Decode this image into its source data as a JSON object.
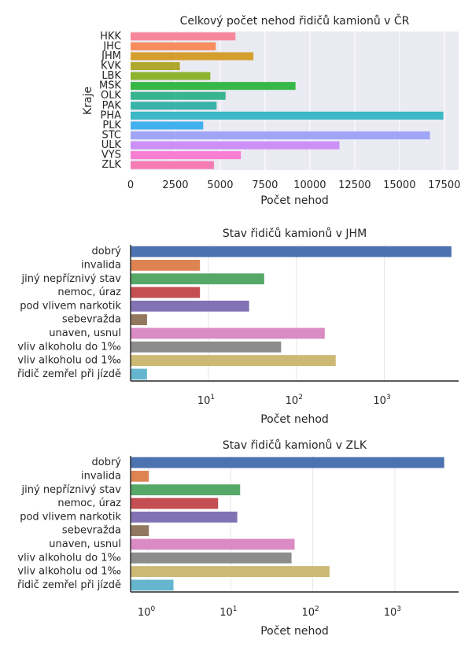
{
  "chart_data": [
    {
      "type": "bar",
      "orientation": "horizontal",
      "title": "Celkový počet nehod řidičů kamionů v ČR",
      "xlabel": "Počet nehod",
      "ylabel": "Kraje",
      "xscale": "linear",
      "xlim": [
        0,
        18300
      ],
      "xticks": [
        0,
        2500,
        5000,
        7500,
        10000,
        12500,
        15000,
        17500
      ],
      "xtick_labels": [
        "0",
        "2500",
        "5000",
        "7500",
        "10000",
        "12500",
        "15000",
        "17500"
      ],
      "grid": true,
      "background": "#eaeaf2",
      "categories": [
        "HKK",
        "JHC",
        "JHM",
        "KVK",
        "LBK",
        "MSK",
        "OLK",
        "PAK",
        "PHA",
        "PLK",
        "STC",
        "ULK",
        "VYS",
        "ZLK"
      ],
      "values": [
        5850,
        4750,
        6850,
        2750,
        4450,
        9200,
        5300,
        4800,
        17450,
        4050,
        16700,
        11650,
        6150,
        4650
      ],
      "colors": [
        "#f7879a",
        "#f88c5e",
        "#d59f2f",
        "#b0a72f",
        "#8db32f",
        "#36b848",
        "#38b58e",
        "#39b3a9",
        "#3cb8c6",
        "#42b0ee",
        "#a1a5f7",
        "#cc8ff5",
        "#f77ed2",
        "#f77cb4"
      ]
    },
    {
      "type": "bar",
      "orientation": "horizontal",
      "title": "Stav řidičů kamionů v JHM",
      "xlabel": "Počet nehod",
      "ylabel": "",
      "xscale": "log",
      "xlim": [
        1.3,
        7000
      ],
      "xticks": [
        10,
        100,
        1000
      ],
      "xtick_labels": [
        {
          "base": "10",
          "exp": "1"
        },
        {
          "base": "10",
          "exp": "2"
        },
        {
          "base": "10",
          "exp": "3"
        }
      ],
      "grid": true,
      "background": "#ffffff",
      "categories": [
        "dobrý",
        "invalida",
        "jiný nepříznivý stav",
        "nemoc, úraz",
        "pod vlivem narkotik",
        "sebevražda",
        "unaven, usnul",
        "vliv alkoholu do 1‰",
        "vliv alkoholu od 1‰",
        "řidič zemřel při jízdě"
      ],
      "values": [
        5800,
        8,
        43,
        8,
        29,
        2,
        210,
        67,
        280,
        2
      ],
      "colors": [
        "#4c72b0",
        "#dd8452",
        "#55a868",
        "#c44e52",
        "#8172b3",
        "#937860",
        "#da8bc3",
        "#8c8c8c",
        "#ccb974",
        "#64b5cd"
      ]
    },
    {
      "type": "bar",
      "orientation": "horizontal",
      "title": "Stav řidičů kamionů v ZLK",
      "xlabel": "Počet nehod",
      "ylabel": "",
      "xscale": "log",
      "xlim": [
        0.6,
        6000
      ],
      "xticks": [
        1,
        10,
        100,
        1000
      ],
      "xtick_labels": [
        {
          "base": "10",
          "exp": "0"
        },
        {
          "base": "10",
          "exp": "1"
        },
        {
          "base": "10",
          "exp": "2"
        },
        {
          "base": "10",
          "exp": "3"
        }
      ],
      "grid": true,
      "background": "#ffffff",
      "categories": [
        "dobrý",
        "invalida",
        "jiný nepříznivý stav",
        "nemoc, úraz",
        "pod vlivem narkotik",
        "sebevražda",
        "unaven, usnul",
        "vliv alkoholu do 1‰",
        "vliv alkoholu od 1‰",
        "řidič zemřel při jízdě"
      ],
      "values": [
        4000,
        1,
        13,
        7,
        12,
        1,
        60,
        55,
        160,
        2
      ],
      "colors": [
        "#4c72b0",
        "#dd8452",
        "#55a868",
        "#c44e52",
        "#8172b3",
        "#937860",
        "#da8bc3",
        "#8c8c8c",
        "#ccb974",
        "#64b5cd"
      ]
    }
  ]
}
